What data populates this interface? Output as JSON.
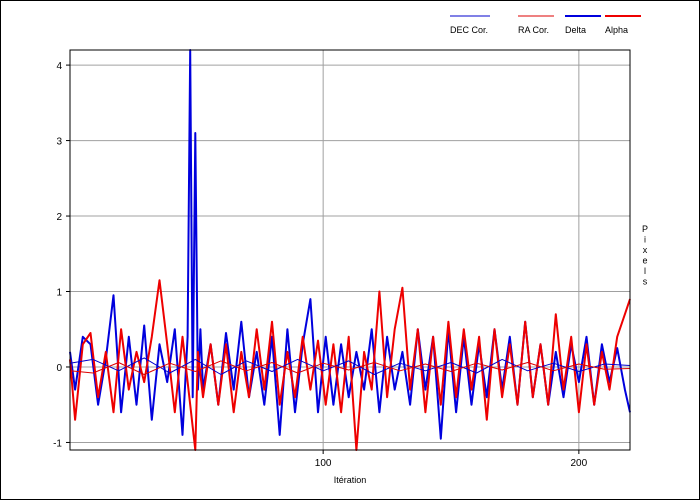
{
  "chart_data": {
    "type": "line",
    "xlabel": "Itération",
    "ylabel": "Pixels",
    "xlim": [
      1,
      220
    ],
    "ylim": [
      -1.1,
      4.2
    ],
    "xticks": [
      100,
      200
    ],
    "xtick_labels": [
      "100",
      "200"
    ],
    "yticks": [
      -1,
      0,
      1,
      2,
      3,
      4
    ],
    "ytick_labels": [
      "-1",
      "0",
      "1",
      "2",
      "3",
      "4"
    ],
    "grid": true,
    "legend_position": "top-right",
    "series": [
      {
        "name": "DEC Cor.",
        "color": "#0000cc",
        "width": 1,
        "x": [
          1,
          10,
          20,
          30,
          40,
          50,
          60,
          70,
          80,
          90,
          100,
          110,
          120,
          130,
          140,
          150,
          160,
          170,
          180,
          190,
          200,
          210,
          220
        ],
        "values": [
          0.05,
          0.1,
          -0.05,
          0.12,
          -0.08,
          0.1,
          -0.1,
          0.08,
          -0.06,
          0.1,
          -0.05,
          0.08,
          -0.1,
          0.05,
          -0.05,
          0.06,
          -0.08,
          0.1,
          -0.05,
          0.05,
          -0.06,
          0.04,
          0.02
        ]
      },
      {
        "name": "RA Cor.",
        "color": "#dd0000",
        "width": 1,
        "x": [
          1,
          10,
          20,
          30,
          40,
          50,
          60,
          70,
          80,
          90,
          100,
          110,
          120,
          130,
          140,
          150,
          160,
          170,
          180,
          190,
          200,
          210,
          220
        ],
        "values": [
          -0.05,
          -0.08,
          0.06,
          -0.1,
          0.05,
          -0.06,
          0.08,
          -0.05,
          0.06,
          -0.08,
          0.05,
          -0.04,
          0.06,
          -0.05,
          0.04,
          -0.06,
          0.05,
          -0.04,
          0.06,
          -0.05,
          0.04,
          -0.03,
          -0.02
        ]
      },
      {
        "name": "Delta",
        "color": "#0000dd",
        "width": 2,
        "x": [
          1,
          3,
          6,
          9,
          12,
          15,
          18,
          21,
          24,
          27,
          30,
          33,
          36,
          39,
          42,
          45,
          47,
          48,
          49,
          50,
          51,
          52,
          53,
          56,
          59,
          62,
          65,
          68,
          71,
          74,
          77,
          80,
          83,
          86,
          89,
          92,
          95,
          98,
          101,
          104,
          107,
          110,
          113,
          116,
          119,
          122,
          125,
          128,
          131,
          134,
          137,
          140,
          143,
          146,
          149,
          152,
          155,
          158,
          161,
          164,
          167,
          170,
          173,
          176,
          179,
          182,
          185,
          188,
          191,
          194,
          197,
          200,
          203,
          206,
          209,
          212,
          215,
          218,
          220
        ],
        "values": [
          0.2,
          -0.3,
          0.4,
          0.3,
          -0.5,
          0.1,
          0.95,
          -0.6,
          0.4,
          -0.5,
          0.55,
          -0.7,
          0.3,
          -0.2,
          0.5,
          -0.9,
          0.4,
          4.2,
          -0.4,
          3.1,
          -0.3,
          0.5,
          -0.3,
          0.3,
          -0.5,
          0.45,
          -0.3,
          0.6,
          -0.4,
          0.2,
          -0.5,
          0.4,
          -0.9,
          0.5,
          -0.6,
          0.3,
          0.9,
          -0.6,
          0.4,
          -0.5,
          0.3,
          -0.4,
          0.2,
          -0.3,
          0.5,
          -0.6,
          0.4,
          -0.3,
          0.2,
          -0.5,
          0.5,
          -0.3,
          0.4,
          -0.95,
          0.5,
          -0.6,
          0.4,
          -0.5,
          0.3,
          -0.4,
          0.5,
          -0.3,
          0.4,
          -0.5,
          0.6,
          -0.4,
          0.3,
          -0.5,
          0.2,
          -0.4,
          0.3,
          -0.2,
          0.4,
          -0.5,
          0.3,
          -0.2,
          0.25,
          -0.3,
          -0.6
        ]
      },
      {
        "name": "Alpha",
        "color": "#ee0000",
        "width": 2,
        "x": [
          1,
          3,
          6,
          9,
          12,
          15,
          18,
          21,
          24,
          27,
          30,
          33,
          36,
          39,
          42,
          45,
          48,
          50,
          51,
          53,
          56,
          59,
          62,
          65,
          68,
          71,
          74,
          77,
          80,
          83,
          86,
          89,
          92,
          95,
          98,
          101,
          104,
          107,
          110,
          113,
          116,
          119,
          122,
          125,
          128,
          131,
          134,
          137,
          140,
          143,
          146,
          149,
          152,
          155,
          158,
          161,
          164,
          167,
          170,
          173,
          176,
          179,
          182,
          185,
          188,
          191,
          194,
          197,
          200,
          203,
          206,
          209,
          212,
          215,
          218,
          220
        ],
        "values": [
          0.1,
          -0.7,
          0.3,
          0.45,
          -0.4,
          0.2,
          -0.6,
          0.5,
          -0.3,
          0.2,
          -0.2,
          0.4,
          1.15,
          0.3,
          -0.6,
          0.4,
          -0.5,
          -1.1,
          0.2,
          -0.4,
          0.3,
          -0.5,
          0.3,
          -0.6,
          0.2,
          -0.4,
          0.5,
          -0.3,
          0.6,
          -0.5,
          0.2,
          -0.4,
          0.4,
          -0.3,
          0.35,
          -0.5,
          0.3,
          -0.6,
          0.4,
          -1.1,
          0.2,
          -0.3,
          1.0,
          -0.4,
          0.5,
          1.05,
          -0.3,
          0.5,
          -0.6,
          0.4,
          -0.5,
          0.6,
          -0.4,
          0.5,
          -0.3,
          0.4,
          -0.7,
          0.5,
          -0.4,
          0.3,
          -0.5,
          0.6,
          -0.4,
          0.3,
          -0.5,
          0.7,
          -0.3,
          0.4,
          -0.6,
          0.3,
          -0.5,
          0.2,
          -0.3,
          0.4,
          0.7,
          0.9
        ]
      }
    ]
  }
}
